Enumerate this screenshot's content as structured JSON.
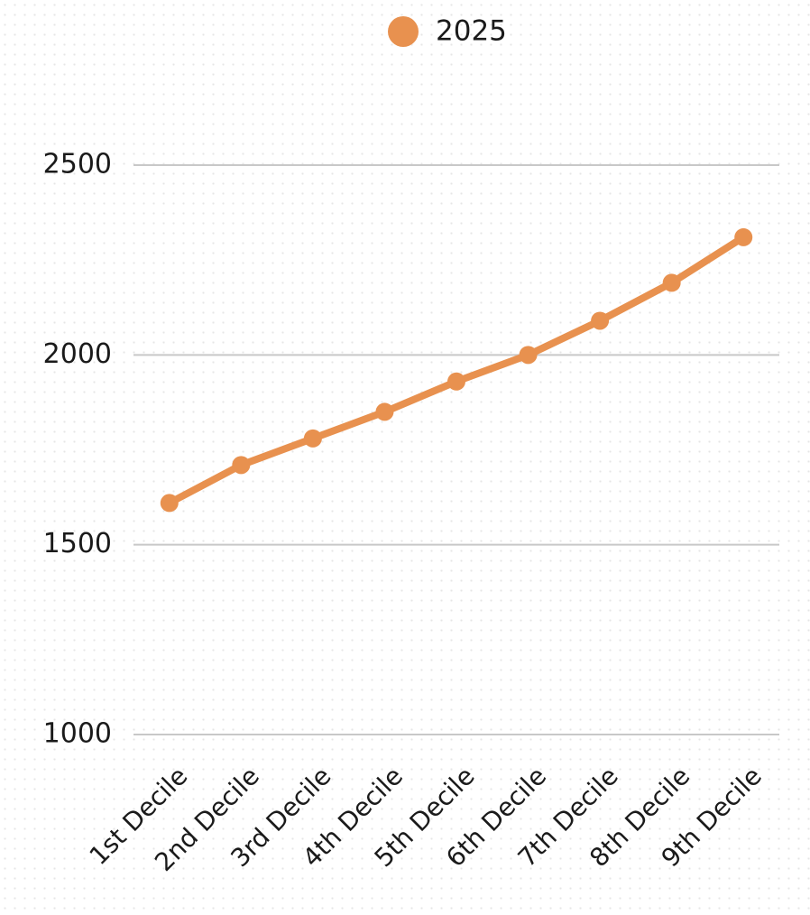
{
  "chart_data": {
    "type": "line",
    "categories": [
      "1st Decile",
      "2nd Decile",
      "3rd Decile",
      "4th Decile",
      "5th Decile",
      "6th Decile",
      "7th Decile",
      "8th Decile",
      "9th Decile"
    ],
    "series": [
      {
        "name": "2025",
        "color": "#e8914f",
        "values": [
          1610,
          1710,
          1780,
          1850,
          1930,
          2000,
          2090,
          2190,
          2310
        ]
      }
    ],
    "ylim": [
      1000,
      2500
    ],
    "yticks": [
      1000,
      1500,
      2000,
      2500
    ],
    "grid": true,
    "legend": "top"
  }
}
